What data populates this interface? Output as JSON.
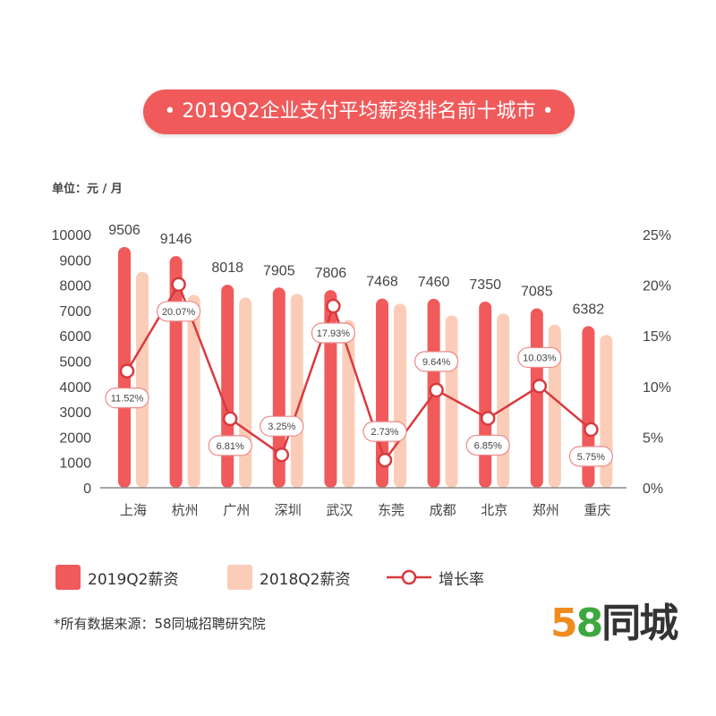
{
  "title": "• 2019Q2企业支付平均薪资排名前十城市 •",
  "unit_label": "单位：元 / 月",
  "chart_data": {
    "type": "bar+line",
    "title": "2019Q2企业支付平均薪资排名前十城市",
    "categories": [
      "上海",
      "杭州",
      "广州",
      "深圳",
      "武汉",
      "东莞",
      "成都",
      "北京",
      "郑州",
      "重庆"
    ],
    "series": [
      {
        "name": "2019Q2薪资",
        "type": "bar",
        "axis": "left",
        "color": "#f05a5b",
        "values": [
          9506,
          9146,
          8018,
          7905,
          7806,
          7468,
          7460,
          7350,
          7085,
          6382
        ],
        "labels": [
          "9506",
          "9146",
          "8018",
          "7905",
          "7806",
          "7468",
          "7460",
          "7350",
          "7085",
          "6382"
        ]
      },
      {
        "name": "2018Q2薪资",
        "type": "bar",
        "axis": "left",
        "color": "#fbcdb8",
        "values": [
          8524,
          7617,
          7507,
          7656,
          6619,
          7270,
          6804,
          6879,
          6439,
          6035
        ]
      },
      {
        "name": "增长率",
        "type": "line",
        "axis": "right",
        "color": "#d93a3e",
        "values": [
          11.52,
          20.07,
          6.81,
          3.25,
          17.93,
          2.73,
          9.64,
          6.85,
          10.03,
          5.75
        ],
        "labels": [
          "11.52%",
          "20.07%",
          "6.81%",
          "3.25%",
          "17.93%",
          "2.73%",
          "9.64%",
          "6.85%",
          "10.03%",
          "5.75%"
        ]
      }
    ],
    "y_left": {
      "range": [
        0,
        10000
      ],
      "ticks": [
        "0",
        "1000",
        "2000",
        "3000",
        "4000",
        "5000",
        "6000",
        "7000",
        "8000",
        "9000",
        "10000"
      ]
    },
    "y_right": {
      "range": [
        0,
        25
      ],
      "ticks": [
        "0%",
        "5%",
        "10%",
        "15%",
        "20%",
        "25%"
      ]
    },
    "grid": false,
    "legend": "bottom"
  },
  "legend": [
    "2019Q2薪资",
    "2018Q2薪资",
    "增长率"
  ],
  "source": "*所有数据来源：58同城招聘研究院",
  "logo": {
    "num5": "5",
    "num8": "8",
    "text": "同城"
  }
}
